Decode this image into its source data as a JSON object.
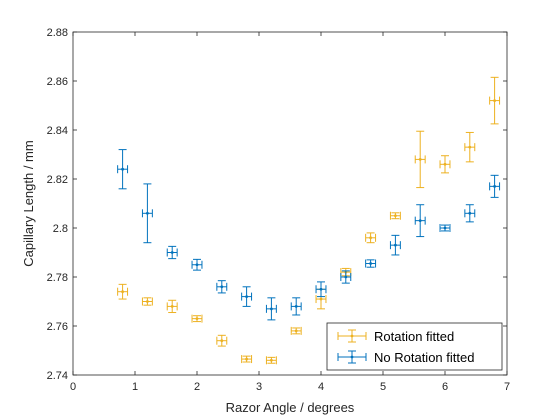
{
  "chart_data": {
    "type": "scatter",
    "xlabel": "Razor Angle / degrees",
    "ylabel": "Capillary Length / mm",
    "xlim": [
      0,
      7
    ],
    "ylim": [
      2.74,
      2.88
    ],
    "xticks": [
      "0",
      "1",
      "2",
      "3",
      "4",
      "5",
      "6",
      "7"
    ],
    "yticks": [
      "2.74",
      "2.76",
      "2.78",
      "2.8",
      "2.82",
      "2.84",
      "2.86",
      "2.88"
    ],
    "grid": false,
    "legend_position": "bottom-right",
    "series": [
      {
        "name": "Rotation fitted",
        "color": "#EDB120",
        "x": [
          0.8,
          1.2,
          1.6,
          2.0,
          2.4,
          2.8,
          3.2,
          3.6,
          4.0,
          4.4,
          4.8,
          5.2,
          5.6,
          6.0,
          6.4,
          6.8
        ],
        "y": [
          2.774,
          2.77,
          2.768,
          2.763,
          2.754,
          2.7465,
          2.746,
          2.758,
          2.771,
          2.782,
          2.796,
          2.805,
          2.828,
          2.826,
          2.833,
          2.852
        ],
        "yerr": [
          0.003,
          0.0015,
          0.0025,
          0.0012,
          0.0022,
          0.0012,
          0.0012,
          0.0012,
          0.004,
          0.0015,
          0.002,
          0.0012,
          0.0115,
          0.0035,
          0.006,
          0.0095
        ],
        "xerr": [
          0.08,
          0.08,
          0.08,
          0.08,
          0.08,
          0.08,
          0.08,
          0.08,
          0.08,
          0.08,
          0.08,
          0.08,
          0.08,
          0.08,
          0.08,
          0.08
        ]
      },
      {
        "name": "No Rotation fitted",
        "color": "#0072BD",
        "x": [
          0.8,
          1.2,
          1.6,
          2.0,
          2.4,
          2.8,
          3.2,
          3.6,
          4.0,
          4.4,
          4.8,
          5.2,
          5.6,
          6.0,
          6.4,
          6.8
        ],
        "y": [
          2.824,
          2.806,
          2.79,
          2.785,
          2.776,
          2.772,
          2.767,
          2.768,
          2.775,
          2.78,
          2.7855,
          2.793,
          2.803,
          2.8,
          2.806,
          2.817
        ],
        "yerr": [
          0.008,
          0.012,
          0.0025,
          0.0022,
          0.0025,
          0.004,
          0.0045,
          0.0035,
          0.003,
          0.0025,
          0.0015,
          0.004,
          0.0065,
          0.0012,
          0.0035,
          0.0045
        ],
        "xerr": [
          0.08,
          0.08,
          0.08,
          0.08,
          0.08,
          0.08,
          0.08,
          0.08,
          0.08,
          0.08,
          0.08,
          0.08,
          0.08,
          0.08,
          0.08,
          0.08
        ]
      }
    ]
  }
}
